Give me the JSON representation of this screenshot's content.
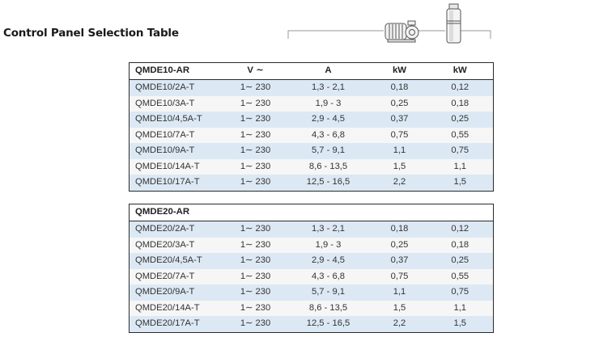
{
  "page": {
    "title": "Control Panel Selection Table"
  },
  "tables": [
    {
      "headers": [
        "QMDE10-AR",
        "V ∼",
        "A",
        "kW",
        "kW"
      ],
      "rows": [
        [
          "QMDE10/2A-T",
          "1∼ 230",
          "1,3 - 2,1",
          "0,18",
          "0,12"
        ],
        [
          "QMDE10/3A-T",
          "1∼ 230",
          "1,9 - 3",
          "0,25",
          "0,18"
        ],
        [
          "QMDE10/4,5A-T",
          "1∼ 230",
          "2,9 - 4,5",
          "0,37",
          "0,25"
        ],
        [
          "QMDE10/7A-T",
          "1∼ 230",
          "4,3 - 6,8",
          "0,75",
          "0,55"
        ],
        [
          "QMDE10/9A-T",
          "1∼ 230",
          "5,7 - 9,1",
          "1,1",
          "0,75"
        ],
        [
          "QMDE10/14A-T",
          "1∼ 230",
          "8,6 - 13,5",
          "1,5",
          "1,1"
        ],
        [
          "QMDE10/17A-T",
          "1∼ 230",
          "12,5 - 16,5",
          "2,2",
          "1,5"
        ]
      ]
    },
    {
      "headers": [
        "QMDE20-AR",
        "",
        "",
        "",
        ""
      ],
      "rows": [
        [
          "QMDE20/2A-T",
          "1∼ 230",
          "1,3 - 2,1",
          "0,18",
          "0,12"
        ],
        [
          "QMDE20/3A-T",
          "1∼ 230",
          "1,9 - 3",
          "0,25",
          "0,18"
        ],
        [
          "QMDE20/4,5A-T",
          "1∼ 230",
          "2,9 - 4,5",
          "0,37",
          "0,25"
        ],
        [
          "QMDE20/7A-T",
          "1∼ 230",
          "4,3 - 6,8",
          "0,75",
          "0,55"
        ],
        [
          "QMDE20/9A-T",
          "1∼ 230",
          "5,7 - 9,1",
          "1,1",
          "0,75"
        ],
        [
          "QMDE20/14A-T",
          "1∼ 230",
          "8,6 - 13,5",
          "1,5",
          "1,1"
        ],
        [
          "QMDE20/17A-T",
          "1∼ 230",
          "12,5 - 16,5",
          "2,2",
          "1,5"
        ]
      ]
    }
  ],
  "icons": {
    "left": "surface-pump-icon",
    "right": "submersible-pump-icon"
  },
  "colors": {
    "row_alt": "#dce9f5",
    "row_plain": "#f6f6f6",
    "border": "#2a2a2a"
  }
}
